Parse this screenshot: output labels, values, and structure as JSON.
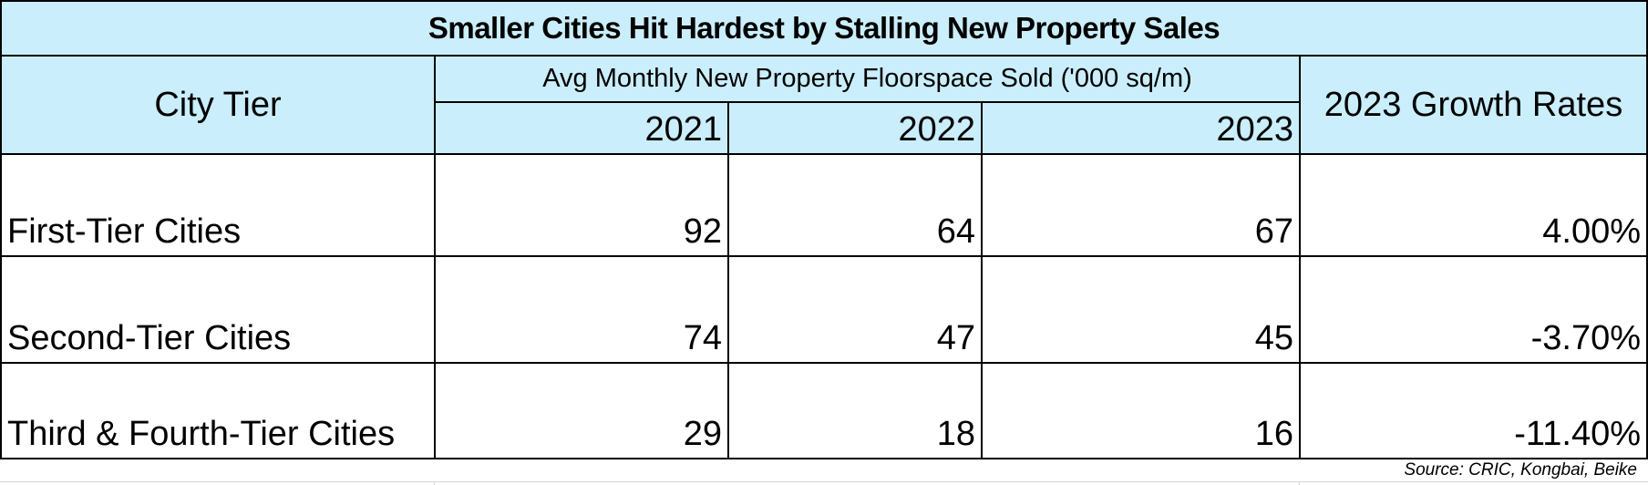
{
  "title": "Smaller Cities Hit Hardest by Stalling New Property Sales",
  "headers": {
    "city_tier": "City Tier",
    "group": "Avg Monthly New Property Floorspace Sold ('000 sq/m)",
    "years": [
      "2021",
      "2022",
      "2023"
    ],
    "growth": "2023 Growth Rates"
  },
  "rows": [
    {
      "tier": "First-Tier Cities",
      "values": [
        "92",
        "64",
        "67"
      ],
      "growth": "4.00%"
    },
    {
      "tier": "Second-Tier Cities",
      "values": [
        "74",
        "47",
        "45"
      ],
      "growth": "-3.70%"
    },
    {
      "tier": "Third & Fourth-Tier Cities",
      "values": [
        "29",
        "18",
        "16"
      ],
      "growth": "-11.40%"
    }
  ],
  "source": "Source: CRIC, Kongbai, Beike",
  "colors": {
    "header_bg": "#caeefb"
  }
}
